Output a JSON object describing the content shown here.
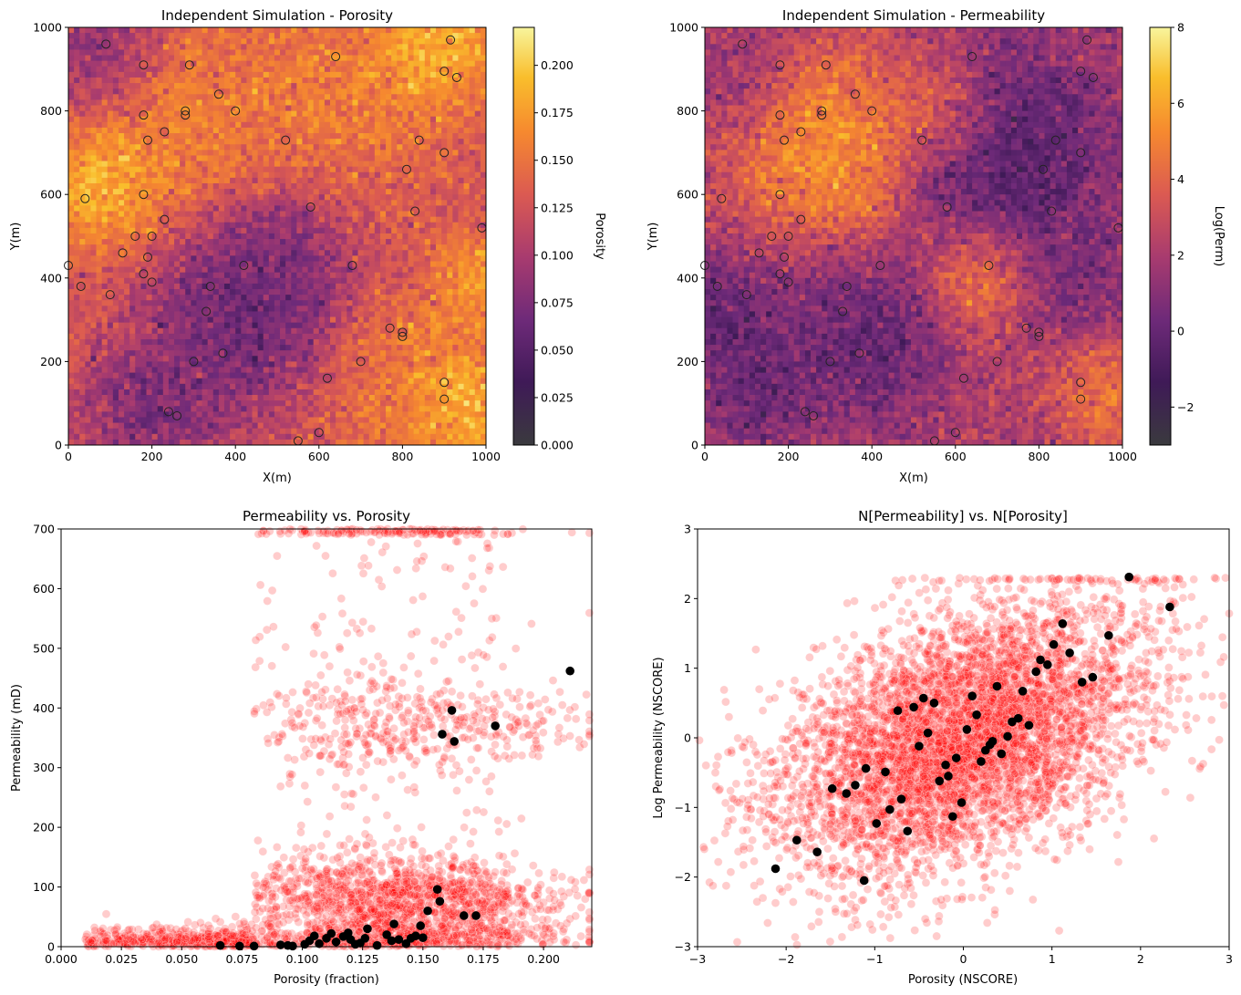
{
  "chart_data": [
    {
      "type": "heatmap",
      "title": "Independent Simulation - Porosity",
      "xlabel": "X(m)",
      "ylabel": "Y(m)",
      "xlim": [
        0,
        1000
      ],
      "ylim": [
        0,
        1000
      ],
      "xticks": [
        0,
        200,
        400,
        600,
        800,
        1000
      ],
      "yticks": [
        0,
        200,
        400,
        600,
        800,
        1000
      ],
      "grid": false,
      "colormap": "inferno",
      "colorbar": {
        "label": "Porosity",
        "min": 0.0,
        "max": 0.22,
        "ticks": [
          "0.000",
          "0.025",
          "0.050",
          "0.075",
          "0.100",
          "0.125",
          "0.150",
          "0.175",
          "0.200"
        ]
      },
      "field_features": [
        {
          "x": 80,
          "y": 620,
          "r": 110,
          "v": 0.21
        },
        {
          "x": 870,
          "y": 960,
          "r": 120,
          "v": 0.21
        },
        {
          "x": 930,
          "y": 100,
          "r": 110,
          "v": 0.21
        },
        {
          "x": 980,
          "y": 380,
          "r": 90,
          "v": 0.19
        },
        {
          "x": 420,
          "y": 310,
          "r": 180,
          "v": 0.04
        },
        {
          "x": 200,
          "y": 90,
          "r": 130,
          "v": 0.05
        },
        {
          "x": 60,
          "y": 950,
          "r": 130,
          "v": 0.07
        },
        {
          "x": 470,
          "y": 460,
          "r": 150,
          "v": 0.06
        },
        {
          "x": 300,
          "y": 730,
          "r": 200,
          "v": 0.17
        },
        {
          "x": 650,
          "y": 820,
          "r": 180,
          "v": 0.165
        },
        {
          "x": 800,
          "y": 150,
          "r": 150,
          "v": 0.16
        }
      ],
      "background_value": 0.13,
      "wells": [
        {
          "x": 90,
          "y": 960
        },
        {
          "x": 180,
          "y": 910
        },
        {
          "x": 290,
          "y": 910
        },
        {
          "x": 640,
          "y": 930
        },
        {
          "x": 915,
          "y": 970
        },
        {
          "x": 900,
          "y": 895
        },
        {
          "x": 930,
          "y": 880
        },
        {
          "x": 360,
          "y": 840
        },
        {
          "x": 180,
          "y": 790
        },
        {
          "x": 280,
          "y": 800
        },
        {
          "x": 280,
          "y": 790
        },
        {
          "x": 400,
          "y": 800
        },
        {
          "x": 230,
          "y": 750
        },
        {
          "x": 190,
          "y": 730
        },
        {
          "x": 520,
          "y": 730
        },
        {
          "x": 840,
          "y": 730
        },
        {
          "x": 900,
          "y": 700
        },
        {
          "x": 810,
          "y": 660
        },
        {
          "x": 40,
          "y": 590
        },
        {
          "x": 180,
          "y": 600
        },
        {
          "x": 580,
          "y": 570
        },
        {
          "x": 830,
          "y": 560
        },
        {
          "x": 230,
          "y": 540
        },
        {
          "x": 990,
          "y": 520
        },
        {
          "x": 160,
          "y": 500
        },
        {
          "x": 200,
          "y": 500
        },
        {
          "x": 130,
          "y": 460
        },
        {
          "x": 190,
          "y": 450
        },
        {
          "x": 0,
          "y": 430
        },
        {
          "x": 420,
          "y": 430
        },
        {
          "x": 680,
          "y": 430
        },
        {
          "x": 180,
          "y": 410
        },
        {
          "x": 200,
          "y": 390
        },
        {
          "x": 30,
          "y": 380
        },
        {
          "x": 340,
          "y": 380
        },
        {
          "x": 100,
          "y": 360
        },
        {
          "x": 330,
          "y": 320
        },
        {
          "x": 770,
          "y": 280
        },
        {
          "x": 800,
          "y": 270
        },
        {
          "x": 800,
          "y": 260
        },
        {
          "x": 370,
          "y": 220
        },
        {
          "x": 300,
          "y": 200
        },
        {
          "x": 700,
          "y": 200
        },
        {
          "x": 620,
          "y": 160
        },
        {
          "x": 900,
          "y": 150
        },
        {
          "x": 900,
          "y": 110
        },
        {
          "x": 240,
          "y": 80
        },
        {
          "x": 260,
          "y": 70
        },
        {
          "x": 600,
          "y": 30
        },
        {
          "x": 550,
          "y": 10
        }
      ]
    },
    {
      "type": "heatmap",
      "title": "Independent Simulation - Permeability",
      "xlabel": "X(m)",
      "ylabel": "Y(m)",
      "xlim": [
        0,
        1000
      ],
      "ylim": [
        0,
        1000
      ],
      "xticks": [
        0,
        200,
        400,
        600,
        800,
        1000
      ],
      "yticks": [
        0,
        200,
        400,
        600,
        800,
        1000
      ],
      "grid": false,
      "colormap": "inferno",
      "colorbar": {
        "label": "Log(Perm)",
        "min": -3,
        "max": 8,
        "ticks": [
          "−2",
          "0",
          "2",
          "4",
          "6",
          "8"
        ]
      },
      "field_features": [
        {
          "x": 300,
          "y": 720,
          "r": 180,
          "v": 6.8
        },
        {
          "x": 560,
          "y": 800,
          "r": 110,
          "v": 5.0
        },
        {
          "x": 660,
          "y": 400,
          "r": 110,
          "v": 5.2
        },
        {
          "x": 960,
          "y": 130,
          "r": 100,
          "v": 5.5
        },
        {
          "x": 720,
          "y": 700,
          "r": 200,
          "v": -1.6
        },
        {
          "x": 380,
          "y": 250,
          "r": 160,
          "v": -0.8
        },
        {
          "x": 40,
          "y": 300,
          "r": 120,
          "v": -1.0
        },
        {
          "x": 120,
          "y": 130,
          "r": 110,
          "v": -0.6
        },
        {
          "x": 880,
          "y": 400,
          "r": 120,
          "v": 0.0
        },
        {
          "x": 80,
          "y": 880,
          "r": 120,
          "v": 1.5
        }
      ],
      "background_value": 2.2,
      "wells": "same as porosity map"
    },
    {
      "type": "scatter",
      "title": "Permeability vs. Porosity",
      "xlabel": "Porosity (fraction)",
      "ylabel": "Permeability (mD)",
      "xlim": [
        0.0,
        0.22
      ],
      "ylim": [
        0,
        700
      ],
      "xticks": [
        "0.000",
        "0.025",
        "0.050",
        "0.075",
        "0.100",
        "0.125",
        "0.150",
        "0.175",
        "0.200"
      ],
      "yticks": [
        "0",
        "100",
        "200",
        "300",
        "400",
        "500",
        "600",
        "700"
      ],
      "grid": false,
      "series": [
        {
          "color": "#ff0000",
          "count": 3000
        },
        {
          "color": "#000000",
          "points": [
            [
              0.066,
              2
            ],
            [
              0.074,
              1
            ],
            [
              0.08,
              1
            ],
            [
              0.091,
              3
            ],
            [
              0.094,
              2
            ],
            [
              0.096,
              1
            ],
            [
              0.101,
              4
            ],
            [
              0.103,
              10
            ],
            [
              0.105,
              18
            ],
            [
              0.107,
              5
            ],
            [
              0.11,
              14
            ],
            [
              0.112,
              22
            ],
            [
              0.114,
              8
            ],
            [
              0.117,
              17
            ],
            [
              0.119,
              23
            ],
            [
              0.12,
              12
            ],
            [
              0.122,
              4
            ],
            [
              0.124,
              6
            ],
            [
              0.126,
              14
            ],
            [
              0.127,
              30
            ],
            [
              0.131,
              2
            ],
            [
              0.135,
              20
            ],
            [
              0.137,
              10
            ],
            [
              0.138,
              38
            ],
            [
              0.14,
              12
            ],
            [
              0.143,
              5
            ],
            [
              0.145,
              14
            ],
            [
              0.147,
              18
            ],
            [
              0.149,
              35
            ],
            [
              0.15,
              15
            ],
            [
              0.152,
              60
            ],
            [
              0.156,
              96
            ],
            [
              0.157,
              76
            ],
            [
              0.167,
              52
            ],
            [
              0.172,
              52
            ],
            [
              0.158,
              356
            ],
            [
              0.162,
              396
            ],
            [
              0.163,
              344
            ],
            [
              0.18,
              370
            ],
            [
              0.211,
              462
            ]
          ]
        }
      ]
    },
    {
      "type": "scatter",
      "title": "N[Permeability] vs. N[Porosity]",
      "xlabel": "Porosity (NSCORE)",
      "ylabel": "Log Permeability (NSCORE)",
      "xlim": [
        -3,
        3
      ],
      "ylim": [
        -3,
        3
      ],
      "xticks": [
        "−3",
        "−2",
        "−1",
        "0",
        "1",
        "2",
        "3"
      ],
      "yticks": [
        "−3",
        "−2",
        "−1",
        "0",
        "1",
        "2",
        "3"
      ],
      "grid": false,
      "series": [
        {
          "color": "#ff0000",
          "count": 5000,
          "correlation": 0.45
        },
        {
          "color": "#000000",
          "points": [
            [
              -2.12,
              -1.88
            ],
            [
              -1.88,
              -1.47
            ],
            [
              -1.65,
              -1.64
            ],
            [
              -1.12,
              -2.05
            ],
            [
              -1.48,
              -0.73
            ],
            [
              -1.32,
              -0.8
            ],
            [
              -1.22,
              -0.68
            ],
            [
              -1.1,
              -0.44
            ],
            [
              -0.98,
              -1.23
            ],
            [
              -0.88,
              -0.49
            ],
            [
              -0.83,
              -1.03
            ],
            [
              -0.7,
              -0.88
            ],
            [
              -0.63,
              -1.34
            ],
            [
              -0.74,
              0.39
            ],
            [
              -0.56,
              0.44
            ],
            [
              -0.5,
              -0.12
            ],
            [
              -0.45,
              0.57
            ],
            [
              -0.4,
              0.07
            ],
            [
              -0.33,
              0.5
            ],
            [
              -0.27,
              -0.62
            ],
            [
              -0.2,
              -0.39
            ],
            [
              -0.17,
              -0.55
            ],
            [
              -0.12,
              -1.13
            ],
            [
              -0.08,
              -0.29
            ],
            [
              -0.02,
              -0.93
            ],
            [
              0.04,
              0.12
            ],
            [
              0.1,
              0.6
            ],
            [
              0.15,
              0.33
            ],
            [
              0.2,
              -0.34
            ],
            [
              0.25,
              -0.18
            ],
            [
              0.3,
              -0.1
            ],
            [
              0.33,
              -0.05
            ],
            [
              0.38,
              0.74
            ],
            [
              0.43,
              -0.23
            ],
            [
              0.5,
              0.02
            ],
            [
              0.55,
              0.23
            ],
            [
              0.62,
              0.28
            ],
            [
              0.67,
              0.67
            ],
            [
              0.74,
              0.18
            ],
            [
              0.82,
              0.95
            ],
            [
              0.87,
              1.12
            ],
            [
              0.95,
              1.05
            ],
            [
              1.02,
              1.34
            ],
            [
              1.12,
              1.64
            ],
            [
              1.2,
              1.22
            ],
            [
              1.34,
              0.8
            ],
            [
              1.46,
              0.87
            ],
            [
              1.64,
              1.47
            ],
            [
              1.87,
              2.31
            ],
            [
              2.33,
              1.88
            ]
          ]
        }
      ]
    }
  ]
}
